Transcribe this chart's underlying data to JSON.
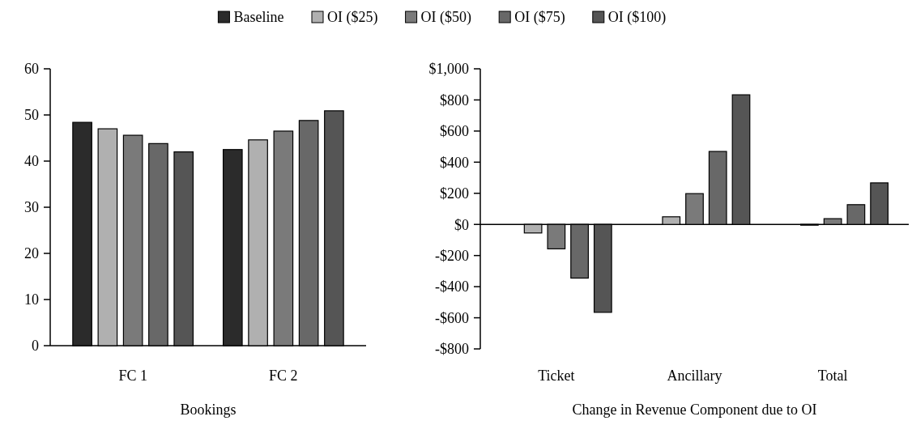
{
  "chart_data": [
    {
      "type": "bar",
      "xlabel": "Bookings",
      "categories": [
        "FC 1",
        "FC 2"
      ],
      "legend": "top",
      "series": [
        {
          "name": "Baseline",
          "color": "#2b2b2b",
          "values": [
            48.4,
            42.5
          ]
        },
        {
          "name": "OI ($25)",
          "color": "#b0b0b0",
          "values": [
            47.0,
            44.6
          ]
        },
        {
          "name": "OI ($50)",
          "color": "#7a7a7a",
          "values": [
            45.6,
            46.5
          ]
        },
        {
          "name": "OI ($75)",
          "color": "#686868",
          "values": [
            43.8,
            48.8
          ]
        },
        {
          "name": "OI ($100)",
          "color": "#555555",
          "values": [
            42.0,
            50.9
          ]
        }
      ],
      "ylim": [
        0,
        60
      ],
      "yticks": [
        0,
        10,
        20,
        30,
        40,
        50,
        60
      ]
    },
    {
      "type": "bar",
      "xlabel": "Change in Revenue Component due to OI",
      "categories": [
        "Ticket",
        "Ancillary",
        "Total"
      ],
      "series": [
        {
          "color": "#2b2b2b",
          "values": [
            0,
            0,
            0
          ]
        },
        {
          "color": "#b0b0b0",
          "values": [
            -55,
            49,
            -5
          ]
        },
        {
          "color": "#7a7a7a",
          "values": [
            -157,
            198,
            37
          ]
        },
        {
          "color": "#686868",
          "values": [
            -345,
            469,
            127
          ]
        },
        {
          "color": "#555555",
          "values": [
            -565,
            833,
            267
          ]
        }
      ],
      "ylim": [
        -800,
        1000
      ],
      "yticks": [
        {
          "value": -800,
          "label": "-$800"
        },
        {
          "value": -600,
          "label": "-$600"
        },
        {
          "value": -400,
          "label": "-$400"
        },
        {
          "value": -200,
          "label": "-$200"
        },
        {
          "value": 0,
          "label": "$0"
        },
        {
          "value": 200,
          "label": "$200"
        },
        {
          "value": 400,
          "label": "$400"
        },
        {
          "value": 600,
          "label": "$600"
        },
        {
          "value": 800,
          "label": "$800"
        },
        {
          "value": 1000,
          "label": "$1,000"
        }
      ]
    }
  ]
}
